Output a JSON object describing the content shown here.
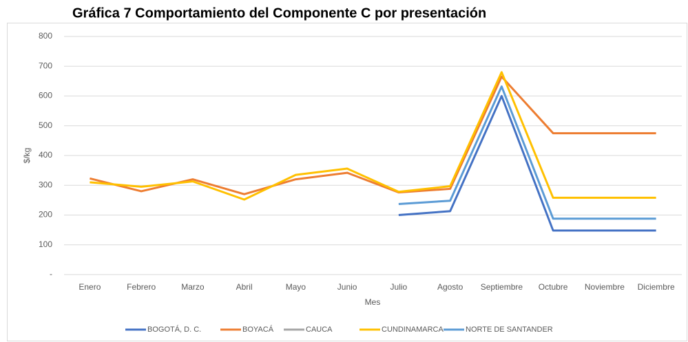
{
  "chart_data": {
    "type": "line",
    "title": "Gráfica 7 Comportamiento del Componente C por presentación",
    "x_label": "Mes",
    "y_label": "$/kg",
    "categories": [
      "Enero",
      "Febrero",
      "Marzo",
      "Abril",
      "Mayo",
      "Junio",
      "Julio",
      "Agosto",
      "Septiembre",
      "Octubre",
      "Noviembre",
      "Diciembre"
    ],
    "series": [
      {
        "name": "BOGOTÁ, D. C.",
        "color": "#4472c4",
        "values": [
          null,
          null,
          null,
          null,
          null,
          null,
          200,
          213,
          600,
          148,
          148,
          148
        ]
      },
      {
        "name": "BOYACÁ",
        "color": "#ed7d31",
        "values": [
          323,
          280,
          320,
          270,
          320,
          342,
          276,
          288,
          665,
          475,
          475,
          475
        ]
      },
      {
        "name": "CAUCA",
        "color": "#a5a5a5",
        "values": [
          null,
          null,
          null,
          null,
          null,
          null,
          null,
          null,
          null,
          null,
          null,
          null
        ]
      },
      {
        "name": "CUNDINAMARCA",
        "color": "#ffc000",
        "values": [
          310,
          295,
          313,
          252,
          335,
          356,
          278,
          297,
          680,
          258,
          258,
          258
        ]
      },
      {
        "name": "NORTE DE SANTANDER",
        "color": "#5b9bd5",
        "values": [
          null,
          null,
          null,
          null,
          null,
          null,
          237,
          248,
          632,
          188,
          188,
          188
        ]
      }
    ],
    "ylim": [
      0,
      800
    ],
    "yticks": [
      {
        "value": 0,
        "label": "-"
      },
      100,
      200,
      300,
      400,
      500,
      600,
      700,
      800
    ],
    "grid": true,
    "legend": "bottom"
  }
}
